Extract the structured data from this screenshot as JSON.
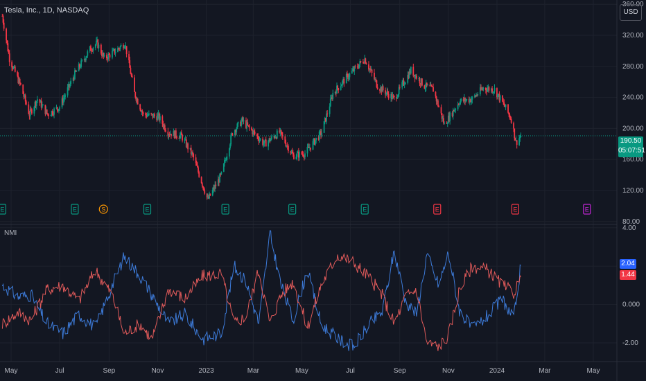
{
  "header": {
    "title": "Tesla, Inc., 1D, NASDAQ",
    "currency": "USD"
  },
  "indicator": {
    "name": "NMI"
  },
  "price_badge": {
    "price": "190.50",
    "countdown": "05:07:51"
  },
  "indicator_badges": [
    {
      "value": "2.04",
      "color": "#2962ff"
    },
    {
      "value": "1.44",
      "color": "#f23645"
    }
  ],
  "colors": {
    "up": "#089981",
    "down": "#f23645",
    "nmi_blue": "#3d7bd9",
    "nmi_red": "#e05a5a",
    "background": "#131722"
  },
  "x_ticks": [
    "May",
    "Jul",
    "Sep",
    "Nov",
    "2023",
    "Mar",
    "May",
    "Jul",
    "Sep",
    "Nov",
    "2024",
    "Mar",
    "May"
  ],
  "chart_data": [
    {
      "type": "candlestick",
      "title": "Tesla, Inc., 1D, NASDAQ",
      "y_ticks": [
        80,
        120,
        160,
        200,
        240,
        280,
        320,
        360
      ],
      "y_tick_labels": [
        "80.00",
        "120.00",
        "160.00",
        "200.00",
        "240.00",
        "280.00",
        "320.00",
        "360.00"
      ],
      "ylim": [
        78,
        362
      ],
      "last_price": 190.5,
      "close_path": [
        {
          "date": "2022-04-20",
          "close": 345
        },
        {
          "date": "2022-04-29",
          "close": 290
        },
        {
          "date": "2022-05-13",
          "close": 255
        },
        {
          "date": "2022-05-24",
          "close": 218
        },
        {
          "date": "2022-06-03",
          "close": 238
        },
        {
          "date": "2022-06-16",
          "close": 218
        },
        {
          "date": "2022-07-01",
          "close": 228
        },
        {
          "date": "2022-07-20",
          "close": 270
        },
        {
          "date": "2022-08-08",
          "close": 302
        },
        {
          "date": "2022-08-17",
          "close": 310
        },
        {
          "date": "2022-08-26",
          "close": 290
        },
        {
          "date": "2022-09-09",
          "close": 300
        },
        {
          "date": "2022-09-21",
          "close": 310
        },
        {
          "date": "2022-10-03",
          "close": 245
        },
        {
          "date": "2022-10-14",
          "close": 218
        },
        {
          "date": "2022-11-02",
          "close": 215
        },
        {
          "date": "2022-11-14",
          "close": 195
        },
        {
          "date": "2022-12-01",
          "close": 190
        },
        {
          "date": "2022-12-15",
          "close": 165
        },
        {
          "date": "2023-01-03",
          "close": 108
        },
        {
          "date": "2023-01-20",
          "close": 140
        },
        {
          "date": "2023-02-03",
          "close": 195
        },
        {
          "date": "2023-02-15",
          "close": 210
        },
        {
          "date": "2023-03-01",
          "close": 195
        },
        {
          "date": "2023-03-15",
          "close": 180
        },
        {
          "date": "2023-04-03",
          "close": 195
        },
        {
          "date": "2023-04-20",
          "close": 165
        },
        {
          "date": "2023-05-05",
          "close": 168
        },
        {
          "date": "2023-05-26",
          "close": 195
        },
        {
          "date": "2023-06-09",
          "close": 245
        },
        {
          "date": "2023-06-23",
          "close": 262
        },
        {
          "date": "2023-07-19",
          "close": 290
        },
        {
          "date": "2023-08-04",
          "close": 255
        },
        {
          "date": "2023-08-25",
          "close": 238
        },
        {
          "date": "2023-09-15",
          "close": 275
        },
        {
          "date": "2023-10-02",
          "close": 255
        },
        {
          "date": "2023-10-13",
          "close": 250
        },
        {
          "date": "2023-10-27",
          "close": 205
        },
        {
          "date": "2023-11-15",
          "close": 235
        },
        {
          "date": "2023-12-01",
          "close": 238
        },
        {
          "date": "2023-12-15",
          "close": 252
        },
        {
          "date": "2023-12-29",
          "close": 250
        },
        {
          "date": "2024-01-10",
          "close": 230
        },
        {
          "date": "2024-01-19",
          "close": 212
        },
        {
          "date": "2024-01-25",
          "close": 182
        },
        {
          "date": "2024-01-31",
          "close": 190.5
        }
      ],
      "earnings_markers": [
        {
          "date": "2022-04-20",
          "label": "E"
        },
        {
          "date": "2022-07-20",
          "label": "E"
        },
        {
          "date": "2022-08-25",
          "label": "S"
        },
        {
          "date": "2022-10-19",
          "label": "E"
        },
        {
          "date": "2023-01-25",
          "label": "E"
        },
        {
          "date": "2023-04-19",
          "label": "E"
        },
        {
          "date": "2023-07-19",
          "label": "E"
        },
        {
          "date": "2023-10-18",
          "label": "E"
        },
        {
          "date": "2024-01-24",
          "label": "E"
        },
        {
          "date": "2024-04-23",
          "label": "E"
        }
      ]
    },
    {
      "type": "line",
      "title": "NMI",
      "y_ticks": [
        -2,
        0,
        2,
        4
      ],
      "y_tick_labels": [
        "-2.00",
        "0.000",
        "",
        "4.00"
      ],
      "ylim": [
        -2.9,
        4.1
      ],
      "series": [
        {
          "color": "#3d7bd9",
          "last": 2.04,
          "points": [
            {
              "date": "2022-04-20",
              "value": 1.0
            },
            {
              "date": "2022-05-10",
              "value": 0.4
            },
            {
              "date": "2022-05-26",
              "value": 0.5
            },
            {
              "date": "2022-06-15",
              "value": -1.0
            },
            {
              "date": "2022-07-05",
              "value": -1.5
            },
            {
              "date": "2022-07-25",
              "value": -0.5
            },
            {
              "date": "2022-08-15",
              "value": -1.2
            },
            {
              "date": "2022-09-05",
              "value": 1.0
            },
            {
              "date": "2022-09-20",
              "value": 2.5
            },
            {
              "date": "2022-10-10",
              "value": 1.5
            },
            {
              "date": "2022-10-25",
              "value": 0.5
            },
            {
              "date": "2022-11-15",
              "value": -1.0
            },
            {
              "date": "2022-12-05",
              "value": -0.5
            },
            {
              "date": "2022-12-28",
              "value": -1.8
            },
            {
              "date": "2023-01-20",
              "value": -1.5
            },
            {
              "date": "2023-02-05",
              "value": 2.0
            },
            {
              "date": "2023-02-20",
              "value": 1.2
            },
            {
              "date": "2023-03-08",
              "value": -1.0
            },
            {
              "date": "2023-03-22",
              "value": 3.7
            },
            {
              "date": "2023-04-05",
              "value": 1.0
            },
            {
              "date": "2023-04-20",
              "value": -0.8
            },
            {
              "date": "2023-05-08",
              "value": 1.8
            },
            {
              "date": "2023-05-25",
              "value": -1.0
            },
            {
              "date": "2023-06-15",
              "value": -1.8
            },
            {
              "date": "2023-07-05",
              "value": -2.2
            },
            {
              "date": "2023-07-25",
              "value": -1.0
            },
            {
              "date": "2023-08-10",
              "value": -0.4
            },
            {
              "date": "2023-08-25",
              "value": 2.8
            },
            {
              "date": "2023-09-08",
              "value": 0.2
            },
            {
              "date": "2023-09-22",
              "value": -0.5
            },
            {
              "date": "2023-10-05",
              "value": 2.6
            },
            {
              "date": "2023-10-20",
              "value": 1.0
            },
            {
              "date": "2023-11-01",
              "value": 2.7
            },
            {
              "date": "2023-11-15",
              "value": -0.3
            },
            {
              "date": "2023-12-01",
              "value": -1.3
            },
            {
              "date": "2023-12-20",
              "value": -0.6
            },
            {
              "date": "2024-01-08",
              "value": 0.3
            },
            {
              "date": "2024-01-22",
              "value": -0.8
            },
            {
              "date": "2024-01-31",
              "value": 2.04
            }
          ]
        },
        {
          "color": "#e05a5a",
          "last": 1.44,
          "points": [
            {
              "date": "2022-04-20",
              "value": -1.0
            },
            {
              "date": "2022-05-10",
              "value": -0.4
            },
            {
              "date": "2022-05-26",
              "value": -0.8
            },
            {
              "date": "2022-06-15",
              "value": 0.8
            },
            {
              "date": "2022-07-05",
              "value": 1.0
            },
            {
              "date": "2022-07-25",
              "value": 0.2
            },
            {
              "date": "2022-08-15",
              "value": 1.8
            },
            {
              "date": "2022-09-05",
              "value": 0.5
            },
            {
              "date": "2022-09-20",
              "value": -1.5
            },
            {
              "date": "2022-10-10",
              "value": -1.0
            },
            {
              "date": "2022-10-25",
              "value": -1.8
            },
            {
              "date": "2022-11-15",
              "value": 0.8
            },
            {
              "date": "2022-12-05",
              "value": 0.3
            },
            {
              "date": "2022-12-28",
              "value": 1.5
            },
            {
              "date": "2023-01-20",
              "value": 1.6
            },
            {
              "date": "2023-02-05",
              "value": -1.0
            },
            {
              "date": "2023-02-20",
              "value": -0.6
            },
            {
              "date": "2023-03-08",
              "value": 1.8
            },
            {
              "date": "2023-03-22",
              "value": -1.0
            },
            {
              "date": "2023-04-05",
              "value": 0.5
            },
            {
              "date": "2023-04-20",
              "value": 1.2
            },
            {
              "date": "2023-05-08",
              "value": -1.2
            },
            {
              "date": "2023-05-25",
              "value": 1.0
            },
            {
              "date": "2023-06-15",
              "value": 2.6
            },
            {
              "date": "2023-07-05",
              "value": 2.2
            },
            {
              "date": "2023-07-25",
              "value": 1.4
            },
            {
              "date": "2023-08-10",
              "value": 0.5
            },
            {
              "date": "2023-08-25",
              "value": -1.0
            },
            {
              "date": "2023-09-08",
              "value": 0.4
            },
            {
              "date": "2023-09-22",
              "value": 0.8
            },
            {
              "date": "2023-10-05",
              "value": -2.0
            },
            {
              "date": "2023-10-20",
              "value": -2.2
            },
            {
              "date": "2023-11-01",
              "value": -1.6
            },
            {
              "date": "2023-11-15",
              "value": 0.8
            },
            {
              "date": "2023-12-01",
              "value": 2.0
            },
            {
              "date": "2023-12-20",
              "value": 1.8
            },
            {
              "date": "2024-01-08",
              "value": 1.0
            },
            {
              "date": "2024-01-22",
              "value": 0.6
            },
            {
              "date": "2024-01-31",
              "value": 1.44
            }
          ]
        }
      ]
    }
  ]
}
